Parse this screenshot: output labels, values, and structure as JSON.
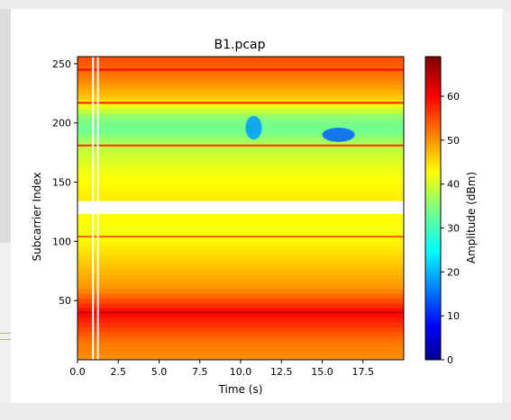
{
  "chart_data": {
    "type": "heatmap",
    "title": "B1.pcap",
    "xlabel": "Time (s)",
    "ylabel": "Subcarrier Index",
    "xlim": [
      0,
      20
    ],
    "ylim": [
      0,
      256
    ],
    "xticks": [
      0.0,
      2.5,
      5.0,
      7.5,
      10.0,
      12.5,
      15.0,
      17.5
    ],
    "xtick_labels": [
      "0.0",
      "2.5",
      "5.0",
      "7.5",
      "10.0",
      "12.5",
      "15.0",
      "17.5"
    ],
    "yticks": [
      50,
      100,
      150,
      200,
      250
    ],
    "ytick_labels": [
      "50",
      "100",
      "150",
      "200",
      "250"
    ],
    "colorbar": {
      "label": "Amplitude (dBm)",
      "range": [
        0,
        69
      ],
      "ticks": [
        0,
        10,
        20,
        30,
        40,
        50,
        60
      ],
      "tick_labels": [
        "0",
        "10",
        "20",
        "30",
        "40",
        "50",
        "60"
      ],
      "colormap": "jet"
    },
    "gap_band": [
      123,
      134
    ],
    "profile": [
      {
        "s": 0,
        "v": 50
      },
      {
        "s": 15,
        "v": 52
      },
      {
        "s": 40,
        "v": 60
      },
      {
        "s": 60,
        "v": 50
      },
      {
        "s": 90,
        "v": 45
      },
      {
        "s": 110,
        "v": 42
      },
      {
        "s": 122,
        "v": 43
      },
      {
        "s": 135,
        "v": 44
      },
      {
        "s": 150,
        "v": 43
      },
      {
        "s": 165,
        "v": 41
      },
      {
        "s": 182,
        "v": 38
      },
      {
        "s": 195,
        "v": 33
      },
      {
        "s": 205,
        "v": 35
      },
      {
        "s": 220,
        "v": 46
      },
      {
        "s": 240,
        "v": 52
      },
      {
        "s": 256,
        "v": 55
      }
    ],
    "hot_lines": [
      {
        "s": 40,
        "v": 64
      },
      {
        "s": 104,
        "v": 54
      },
      {
        "s": 181,
        "v": 57
      },
      {
        "s": 217,
        "v": 58
      },
      {
        "s": 245,
        "v": 60
      }
    ],
    "dips": [
      {
        "t": 10.8,
        "s": 196,
        "v": 18,
        "dt": 0.5,
        "ds": 10
      },
      {
        "t": 16.0,
        "s": 190,
        "v": 14,
        "dt": 1.0,
        "ds": 6
      }
    ],
    "white_columns": [
      0.95,
      1.25
    ]
  }
}
